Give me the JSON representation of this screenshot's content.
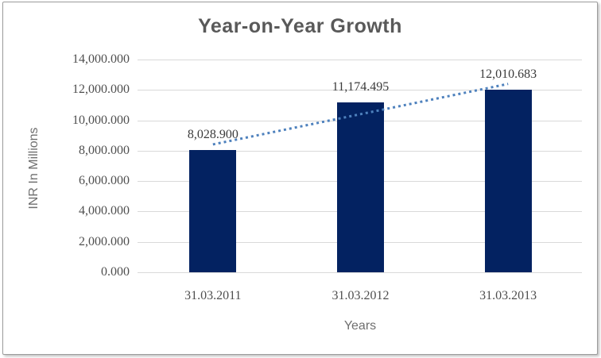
{
  "chart_data": {
    "type": "bar",
    "title": "Year-on-Year Growth",
    "xlabel": "Years",
    "ylabel": "INR In Millions",
    "categories": [
      "31.03.2011",
      "31.03.2012",
      "31.03.2013"
    ],
    "values": [
      8028.9,
      11174.495,
      12010.683
    ],
    "data_labels": [
      "8,028.900",
      "11,174.495",
      "12,010.683"
    ],
    "ylim": [
      0,
      14000
    ],
    "ytick_step": 2000,
    "ytick_values": [
      0,
      2000,
      4000,
      6000,
      8000,
      10000,
      12000,
      14000
    ],
    "ytick_labels": [
      "0.000",
      "2,000.000",
      "4,000.000",
      "6,000.000",
      "8,000.000",
      "10,000.000",
      "12,000.000",
      "14,000.000"
    ],
    "grid": true,
    "legend": "none",
    "trendline": {
      "type": "linear",
      "style": "dotted"
    }
  },
  "colors": {
    "bar": "#032261",
    "trendline": "#4E81BD",
    "grid": "#D9D9D9",
    "title_text": "#595959",
    "axis_text": "#6F6F6F",
    "tick_text": "#4F4F4F",
    "label_text": "#3B3B3B",
    "frame_border": "#9C9C9C"
  }
}
